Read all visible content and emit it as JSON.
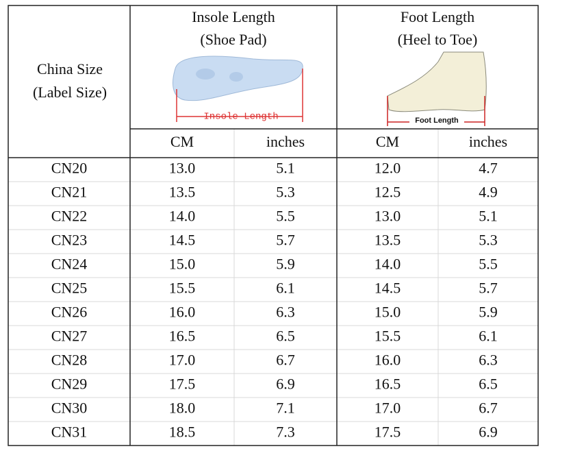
{
  "header": {
    "china_size": [
      "China Size",
      "(Label Size)"
    ],
    "insole": [
      "Insole Length",
      "(Shoe Pad)"
    ],
    "insole_image_label": "Insole Length",
    "foot": [
      "Foot Length",
      "(Heel to Toe)"
    ],
    "foot_image_label": "Foot Length",
    "units": [
      "CM",
      "inches",
      "CM",
      "inches"
    ]
  },
  "table": {
    "rows": [
      [
        "CN20",
        "13.0",
        "5.1",
        "12.0",
        "4.7"
      ],
      [
        "CN21",
        "13.5",
        "5.3",
        "12.5",
        "4.9"
      ],
      [
        "CN22",
        "14.0",
        "5.5",
        "13.0",
        "5.1"
      ],
      [
        "CN23",
        "14.5",
        "5.7",
        "13.5",
        "5.3"
      ],
      [
        "CN24",
        "15.0",
        "5.9",
        "14.0",
        "5.5"
      ],
      [
        "CN25",
        "15.5",
        "6.1",
        "14.5",
        "5.7"
      ],
      [
        "CN26",
        "16.0",
        "6.3",
        "15.0",
        "5.9"
      ],
      [
        "CN27",
        "16.5",
        "6.5",
        "15.5",
        "6.1"
      ],
      [
        "CN28",
        "17.0",
        "6.7",
        "16.0",
        "6.3"
      ],
      [
        "CN29",
        "17.5",
        "6.9",
        "16.5",
        "6.5"
      ],
      [
        "CN30",
        "18.0",
        "7.1",
        "17.0",
        "6.7"
      ],
      [
        "CN31",
        "18.5",
        "7.3",
        "17.5",
        "6.9"
      ]
    ]
  }
}
